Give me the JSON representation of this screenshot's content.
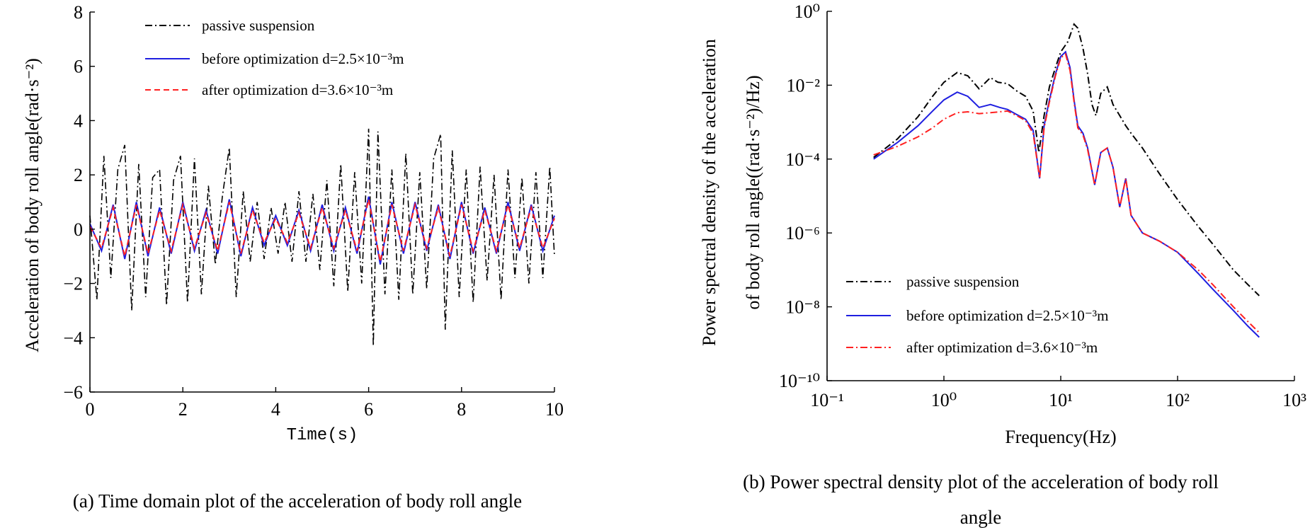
{
  "chart_data": [
    {
      "type": "line",
      "title": "",
      "xlabel": "Time(s)",
      "ylabel": "Acceleration of body roll angle(rad·s⁻²)",
      "xlim": [
        0,
        10
      ],
      "ylim": [
        -6,
        8
      ],
      "x_ticks": [
        "0",
        "2",
        "4",
        "6",
        "8",
        "10"
      ],
      "y_ticks": [
        "−6",
        "−4",
        "−2",
        "0",
        "2",
        "4",
        "6",
        "8"
      ],
      "grid": false,
      "legend_position": "top",
      "series": [
        {
          "name": "passive suspension",
          "color": "#000000",
          "style": "dash-dot",
          "x": [
            0,
            0.15,
            0.3,
            0.45,
            0.6,
            0.75,
            0.9,
            1.05,
            1.2,
            1.35,
            1.5,
            1.65,
            1.8,
            1.95,
            2.1,
            2.25,
            2.4,
            2.55,
            2.7,
            2.85,
            3.0,
            3.15,
            3.3,
            3.45,
            3.6,
            3.75,
            3.9,
            4.05,
            4.2,
            4.35,
            4.5,
            4.65,
            4.8,
            4.95,
            5.1,
            5.25,
            5.4,
            5.55,
            5.7,
            5.85,
            6.0,
            6.1,
            6.2,
            6.35,
            6.5,
            6.65,
            6.8,
            6.95,
            7.1,
            7.25,
            7.4,
            7.55,
            7.65,
            7.8,
            7.95,
            8.1,
            8.25,
            8.4,
            8.55,
            8.7,
            8.85,
            9.0,
            9.15,
            9.3,
            9.45,
            9.6,
            9.75,
            9.9,
            10.0
          ],
          "y": [
            0.5,
            -2.6,
            2.7,
            -1.8,
            2.2,
            3.1,
            -3.0,
            2.4,
            -2.5,
            1.9,
            2.2,
            -2.8,
            1.8,
            2.7,
            -2.7,
            2.6,
            -2.4,
            1.6,
            -1.3,
            1.2,
            3.0,
            -2.5,
            1.4,
            -1.2,
            1.0,
            -1.1,
            0.8,
            -0.9,
            1.0,
            -1.2,
            1.4,
            -1.2,
            1.3,
            -1.5,
            1.8,
            -2.1,
            2.4,
            -2.3,
            2.1,
            -2.0,
            3.7,
            -4.3,
            3.6,
            -2.4,
            2.2,
            -2.6,
            2.8,
            -2.4,
            2.1,
            -2.2,
            2.6,
            3.5,
            -3.7,
            2.9,
            -2.5,
            2.2,
            -2.7,
            2.3,
            -1.9,
            2.0,
            -2.6,
            2.2,
            -1.8,
            1.9,
            -2.0,
            2.1,
            -1.8,
            2.3,
            -1.0
          ]
        },
        {
          "name": "before optimization  d=2.5×10⁻³m",
          "color": "#1f1fe0",
          "style": "solid",
          "x": [
            0,
            0.25,
            0.5,
            0.75,
            1.0,
            1.25,
            1.5,
            1.75,
            2.0,
            2.25,
            2.5,
            2.75,
            3.0,
            3.25,
            3.5,
            3.75,
            4.0,
            4.25,
            4.5,
            4.75,
            5.0,
            5.25,
            5.5,
            5.75,
            6.0,
            6.25,
            6.5,
            6.75,
            7.0,
            7.25,
            7.5,
            7.75,
            8.0,
            8.25,
            8.5,
            8.75,
            9.0,
            9.25,
            9.5,
            9.75,
            10.0
          ],
          "y": [
            0.2,
            -0.8,
            0.9,
            -1.1,
            1.0,
            -1.0,
            0.8,
            -0.9,
            1.0,
            -0.8,
            0.7,
            -0.9,
            1.1,
            -1.0,
            0.8,
            -0.6,
            0.5,
            -0.6,
            0.7,
            -0.8,
            0.9,
            -0.8,
            0.8,
            -0.9,
            1.2,
            -1.3,
            1.0,
            -0.9,
            1.0,
            -0.8,
            0.9,
            -1.1,
            1.0,
            -0.9,
            0.8,
            -0.9,
            1.0,
            -0.8,
            0.9,
            -0.8,
            0.5
          ]
        },
        {
          "name": "after optimization  d=3.6×10⁻³m",
          "color": "#ff2020",
          "style": "dashed",
          "x": [
            0,
            0.25,
            0.5,
            0.75,
            1.0,
            1.25,
            1.5,
            1.75,
            2.0,
            2.25,
            2.5,
            2.75,
            3.0,
            3.25,
            3.5,
            3.75,
            4.0,
            4.25,
            4.5,
            4.75,
            5.0,
            5.25,
            5.5,
            5.75,
            6.0,
            6.25,
            6.5,
            6.75,
            7.0,
            7.25,
            7.5,
            7.75,
            8.0,
            8.25,
            8.5,
            8.75,
            9.0,
            9.25,
            9.5,
            9.75,
            10.0
          ],
          "y": [
            0.1,
            -0.7,
            0.8,
            -1.0,
            0.9,
            -0.9,
            0.7,
            -0.8,
            0.9,
            -0.7,
            0.6,
            -0.8,
            1.0,
            -0.9,
            0.7,
            -0.5,
            0.4,
            -0.5,
            0.6,
            -0.7,
            0.8,
            -0.7,
            0.7,
            -0.8,
            1.1,
            -1.2,
            0.9,
            -0.8,
            0.9,
            -0.7,
            0.8,
            -1.0,
            0.9,
            -0.8,
            0.7,
            -0.8,
            0.9,
            -0.7,
            0.8,
            -0.7,
            0.4
          ]
        }
      ]
    },
    {
      "type": "line",
      "title": "",
      "xlabel": "Frequency(Hz)",
      "ylabel_line1": "Power spectral density of the acceleration",
      "ylabel_line2": "of body roll angle((rad·s⁻²)/Hz)",
      "x_scale": "log",
      "y_scale": "log",
      "xlim": [
        0.1,
        1000
      ],
      "ylim": [
        1e-10,
        1
      ],
      "x_ticks": [
        "10⁻¹",
        "10⁰",
        "10¹",
        "10²",
        "10³"
      ],
      "y_ticks": [
        "10⁻¹⁰",
        "10⁻⁸",
        "10⁻⁶",
        "10⁻⁴",
        "10⁻²",
        "10⁰"
      ],
      "grid": false,
      "legend_position": "bottom-left",
      "series": [
        {
          "name": "passive suspension",
          "color": "#000000",
          "style": "dash-dot",
          "x": [
            0.25,
            0.4,
            0.6,
            0.8,
            1.0,
            1.3,
            1.6,
            2.0,
            2.5,
            2.9,
            3.5,
            4.2,
            5.0,
            5.8,
            6.5,
            7.2,
            8.0,
            9.0,
            10.0,
            11.5,
            13.0,
            14.0,
            15.5,
            17.0,
            18.5,
            20.0,
            22.0,
            25.0,
            28.0,
            32.0,
            36.0,
            40.0,
            50.0,
            70.0,
            100.0,
            150.0,
            200.0,
            300.0,
            400.0,
            500.0
          ],
          "y": [
            0.00011,
            0.00035,
            0.0014,
            0.005,
            0.012,
            0.022,
            0.018,
            0.008,
            0.016,
            0.012,
            0.011,
            0.007,
            0.005,
            0.002,
            0.00015,
            0.0015,
            0.009,
            0.03,
            0.08,
            0.15,
            0.45,
            0.35,
            0.1,
            0.02,
            0.003,
            0.0015,
            0.006,
            0.009,
            0.003,
            0.0015,
            0.0008,
            0.0005,
            0.0002,
            4e-05,
            8e-06,
            1.5e-06,
            5e-07,
            1e-07,
            4e-08,
            2e-08
          ]
        },
        {
          "name": "before optimization  d=2.5×10⁻³m",
          "color": "#1f1fe0",
          "style": "solid",
          "x": [
            0.25,
            0.4,
            0.6,
            0.8,
            1.0,
            1.3,
            1.6,
            2.0,
            2.5,
            3.0,
            3.5,
            4.2,
            5.0,
            5.8,
            6.6,
            7.2,
            8.0,
            9.0,
            10.0,
            11.0,
            12.0,
            13.0,
            14.0,
            15.5,
            17.0,
            19.5,
            22.0,
            25.0,
            28.0,
            32.0,
            36.0,
            40.0,
            50.0,
            70.0,
            100.0,
            150.0,
            200.0,
            300.0,
            400.0,
            500.0
          ],
          "y": [
            0.0001,
            0.00028,
            0.0008,
            0.002,
            0.004,
            0.0065,
            0.005,
            0.0025,
            0.003,
            0.0025,
            0.0022,
            0.0016,
            0.0012,
            0.0006,
            3e-05,
            0.0008,
            0.004,
            0.02,
            0.06,
            0.08,
            0.03,
            0.004,
            0.0008,
            0.0005,
            0.0002,
            2e-05,
            0.00015,
            0.0002,
            6e-05,
            5e-06,
            3e-05,
            3e-06,
            1e-06,
            6e-07,
            3e-07,
            8e-08,
            3e-08,
            8e-09,
            3e-09,
            1.5e-09
          ]
        },
        {
          "name": "after optimization  d=3.6×10⁻³m",
          "color": "#ff2020",
          "style": "dash-dot",
          "x": [
            0.25,
            0.4,
            0.6,
            0.8,
            1.0,
            1.3,
            1.6,
            2.0,
            2.5,
            3.0,
            3.5,
            4.2,
            5.0,
            5.8,
            6.6,
            7.2,
            8.0,
            9.0,
            10.0,
            11.0,
            12.0,
            13.0,
            14.0,
            15.5,
            17.0,
            19.5,
            22.0,
            25.0,
            28.0,
            32.0,
            36.0,
            40.0,
            50.0,
            70.0,
            100.0,
            150.0,
            200.0,
            300.0,
            400.0,
            500.0
          ],
          "y": [
            0.00013,
            0.00022,
            0.0004,
            0.0007,
            0.0012,
            0.0018,
            0.0019,
            0.0017,
            0.0018,
            0.0019,
            0.002,
            0.0015,
            0.0011,
            0.0005,
            3e-05,
            0.0007,
            0.0035,
            0.018,
            0.055,
            0.07,
            0.025,
            0.0035,
            0.0007,
            0.00045,
            0.00018,
            2e-05,
            0.00015,
            0.0002,
            6e-05,
            5e-06,
            3e-05,
            3e-06,
            1e-06,
            6e-07,
            3e-07,
            1e-07,
            4e-08,
            1e-08,
            4e-09,
            2e-09
          ]
        }
      ]
    }
  ],
  "captions": {
    "left": "(a) Time domain plot of the acceleration of body roll angle",
    "right_line1": "(b) Power spectral density plot of the acceleration of body roll",
    "right_line2": "angle"
  }
}
